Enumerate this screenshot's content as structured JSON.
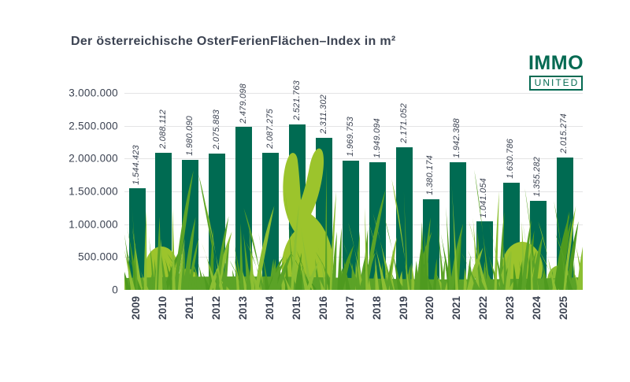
{
  "title": "Der österreichische OsterFerienFlächen–Index in m²",
  "logo": {
    "line1": "IMMO",
    "line2": "UNITED"
  },
  "chart_data": {
    "type": "bar",
    "title": "Der österreichische OsterFerienFlächen–Index in m²",
    "categories": [
      "2009",
      "2010",
      "2011",
      "2012",
      "2013",
      "2014",
      "2015",
      "2016",
      "2017",
      "2018",
      "2019",
      "2020",
      "2021",
      "2022",
      "2023",
      "2024",
      "2025"
    ],
    "values": [
      1544423,
      2088112,
      1980090,
      2075883,
      2479098,
      2087275,
      2521763,
      2311302,
      1969753,
      1949094,
      2171052,
      1380174,
      1942388,
      1041054,
      1630786,
      1355282,
      2015274
    ],
    "value_labels": [
      "1.544.423",
      "2.088.112",
      "1.980.090",
      "2.075.883",
      "2.479.098",
      "2.087.275",
      "2.521.763",
      "2.311.302",
      "1.969.753",
      "1.949.094",
      "2.171.052",
      "1.380.174",
      "1.942.388",
      "1.041.054",
      "1.630.786",
      "1.355.282",
      "2.015.274"
    ],
    "xlabel": "",
    "ylabel": "",
    "ylim": [
      0,
      3000000
    ],
    "ytick_values": [
      0,
      500000,
      1000000,
      1500000,
      2000000,
      2500000,
      3000000
    ],
    "ytick_labels": [
      "0",
      "500.000",
      "1.000.000",
      "1.500.000",
      "2.000.000",
      "2.500.000",
      "3.000.000"
    ],
    "grid": true,
    "legend": "none",
    "bar_color": "#006B52",
    "decor": "easter grass with bunny silhouette and eggs"
  },
  "colors": {
    "bar": "#006B52",
    "text": "#3C4352",
    "grid": "#E4E4E5",
    "logo_green": "#046A52",
    "grass_mid": "#5BA327",
    "grass_light": "#8CBF33",
    "grass_dark": "#4E9A1F",
    "accent_light_green": "#9CC42C"
  }
}
